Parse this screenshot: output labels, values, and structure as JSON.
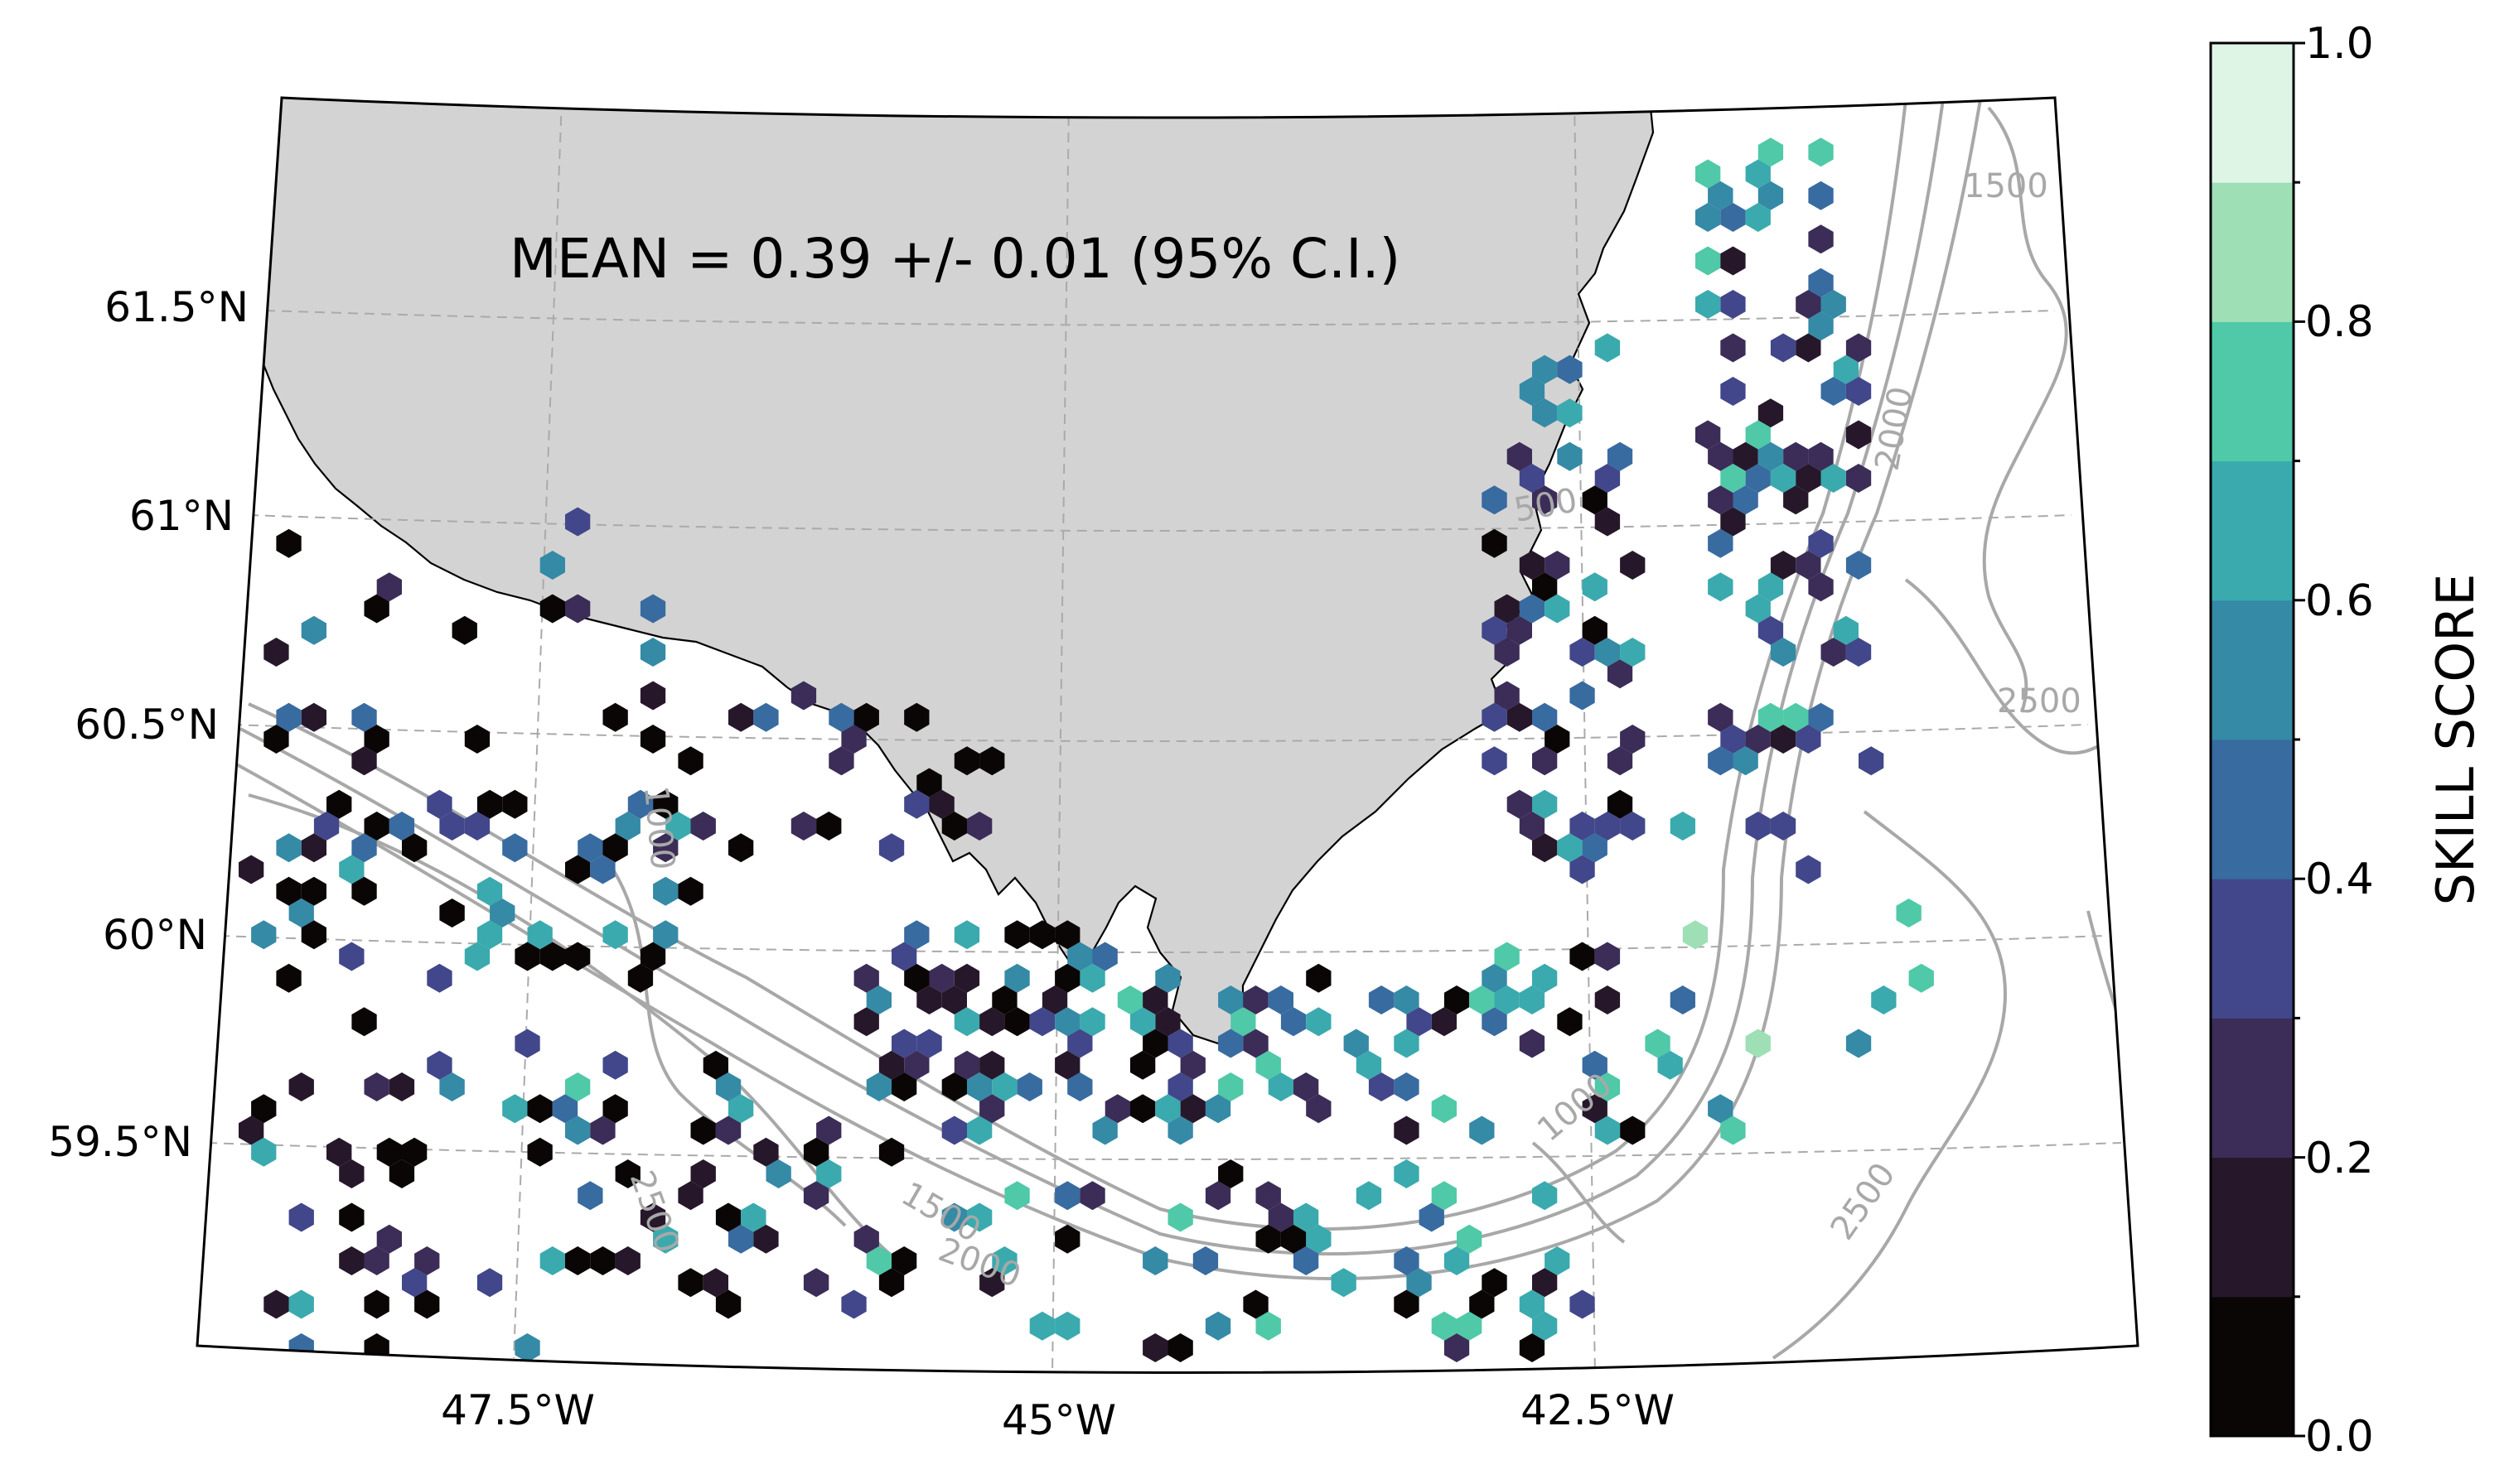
{
  "figure": {
    "annotation": "MEAN = 0.39 +/- 0.01 (95% C.I.)",
    "colorbar_label": "SKILL SCORE",
    "land_color": "#d3d3d3",
    "contour_color": "#a8a8a8"
  },
  "axes": {
    "lat_ticks": [
      "61.5°N",
      "61°N",
      "60.5°N",
      "60°N",
      "59.5°N"
    ],
    "lon_ticks": [
      "47.5°W",
      "45°W",
      "42.5°W"
    ]
  },
  "contours": {
    "labels": [
      "1500",
      "2500",
      "2500",
      "2000",
      "2000",
      "2500",
      "500",
      "1000",
      "1000",
      "1500"
    ]
  },
  "colorbar": {
    "ticks": [
      "0.0",
      "0.2",
      "0.4",
      "0.6",
      "0.8",
      "1.0"
    ],
    "colors": [
      "#0b0606",
      "#26182a",
      "#3b2d57",
      "#41478a",
      "#386ba0",
      "#358aa6",
      "#3aaaae",
      "#4fc9a7",
      "#9edfb6",
      "#def5e6"
    ]
  },
  "chart_data": {
    "type": "hexbin",
    "title": "MEAN = 0.39 +/- 0.01 (95% C.I.)",
    "xlabel": "",
    "ylabel": "",
    "colorbar_label": "SKILL SCORE",
    "crange": [
      0.0,
      1.0
    ],
    "region": {
      "lon": [
        -49.0,
        -40.5
      ],
      "lat": [
        59.0,
        62.0
      ]
    },
    "seed": 7,
    "groups": [
      {
        "lon": [
          -41.8,
          -41.0
        ],
        "lat": [
          60.4,
          61.9
        ],
        "n": 90,
        "mean": 0.45,
        "spread": 0.35
      },
      {
        "lon": [
          -42.9,
          -42.2
        ],
        "lat": [
          60.1,
          61.4
        ],
        "n": 70,
        "mean": 0.38,
        "spread": 0.35
      },
      {
        "lon": [
          -44.8,
          -42.3
        ],
        "lat": [
          59.5,
          59.95
        ],
        "n": 75,
        "mean": 0.4,
        "spread": 0.4
      },
      {
        "lon": [
          -46.0,
          -44.9
        ],
        "lat": [
          59.6,
          60.0
        ],
        "n": 55,
        "mean": 0.3,
        "spread": 0.4
      },
      {
        "lon": [
          -49.0,
          -46.8
        ],
        "lat": [
          59.9,
          60.3
        ],
        "n": 55,
        "mean": 0.3,
        "spread": 0.4
      },
      {
        "lon": [
          -49.0,
          -47.0
        ],
        "lat": [
          60.4,
          61.0
        ],
        "n": 22,
        "mean": 0.25,
        "spread": 0.3
      },
      {
        "lon": [
          -47.4,
          -45.4
        ],
        "lat": [
          60.2,
          60.6
        ],
        "n": 32,
        "mean": 0.15,
        "spread": 0.3
      },
      {
        "lon": [
          -47.5,
          -45.4
        ],
        "lat": [
          59.1,
          59.7
        ],
        "n": 55,
        "mean": 0.35,
        "spread": 0.4
      },
      {
        "lon": [
          -49.0,
          -47.6
        ],
        "lat": [
          59.0,
          59.8
        ],
        "n": 35,
        "mean": 0.3,
        "spread": 0.4
      },
      {
        "lon": [
          -45.4,
          -42.6
        ],
        "lat": [
          59.0,
          59.45
        ],
        "n": 55,
        "mean": 0.4,
        "spread": 0.4
      },
      {
        "lon": [
          -42.2,
          -40.8
        ],
        "lat": [
          59.5,
          60.3
        ],
        "n": 15,
        "mean": 0.6,
        "spread": 0.3
      }
    ]
  }
}
